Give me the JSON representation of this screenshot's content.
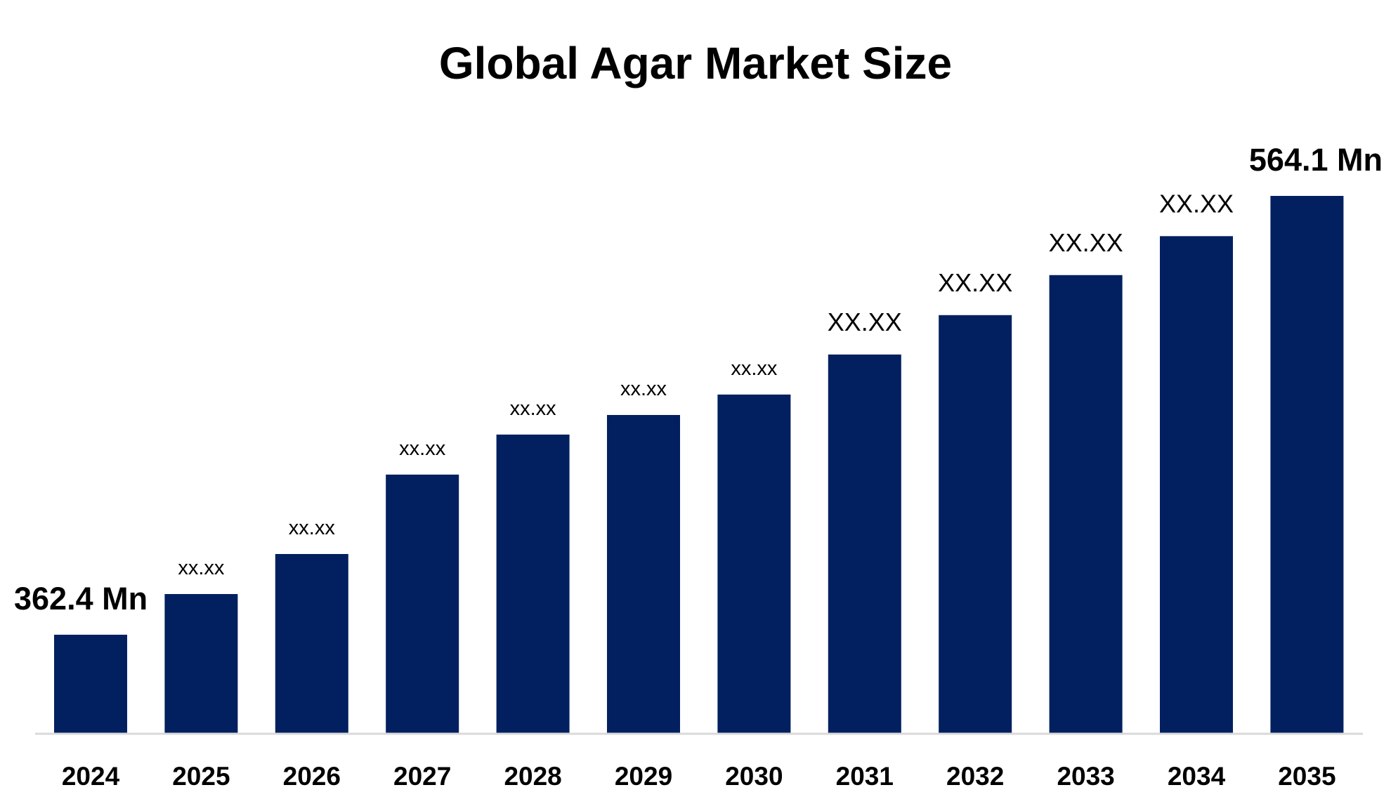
{
  "chart_data": {
    "type": "bar",
    "title": "Global Agar Market Size",
    "xlabel": "",
    "ylabel": "",
    "categories": [
      "2024",
      "2025",
      "2026",
      "2027",
      "2028",
      "2029",
      "2030",
      "2031",
      "2032",
      "2033",
      "2034",
      "2035"
    ],
    "values": [
      362.4,
      381.1,
      399.5,
      436.0,
      454.4,
      463.4,
      472.8,
      491.2,
      509.3,
      527.7,
      545.6,
      564.1
    ],
    "data_labels": [
      "362.4 Mn",
      "xx.xx",
      "xx.xx",
      "xx.xx",
      "xx.xx",
      "xx.xx",
      "xx.xx",
      "XX.XX",
      "XX.XX",
      "XX.XX",
      "XX.XX",
      "564.1 Mn"
    ],
    "ylim": [
      317.2,
      564.1
    ],
    "grid": false,
    "legend": "none",
    "bar_color": "#02205f",
    "axis_color": "#d9d9d9"
  }
}
